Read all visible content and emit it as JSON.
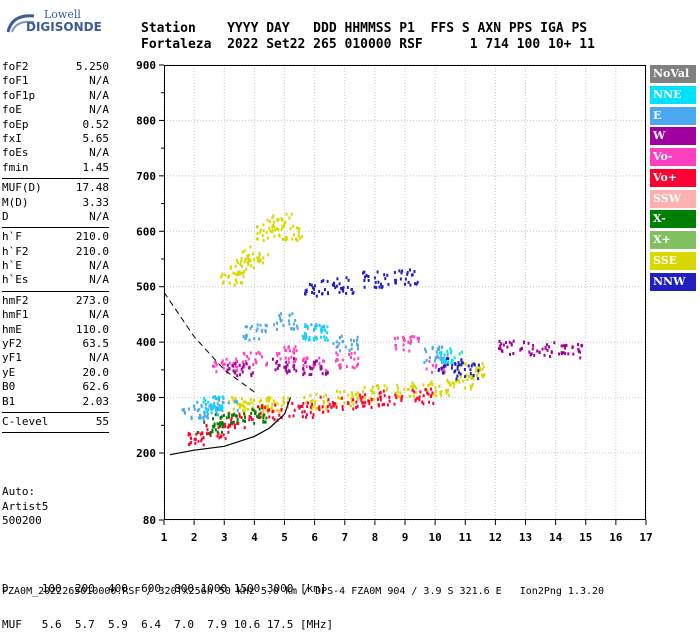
{
  "logo": {
    "line1": "Lowell",
    "line2": "DIGISONDE"
  },
  "header": {
    "line1": "Station    YYYY DAY   DDD HHMMSS P1  FFS S AXN PPS IGA PS",
    "line2": "Fortaleza  2022 Set22 265 010000 RSF      1 714 100 10+ 11"
  },
  "params": [
    {
      "label": "foF2",
      "value": "5.250"
    },
    {
      "label": "foF1",
      "value": "N/A"
    },
    {
      "label": "foF1p",
      "value": "N/A"
    },
    {
      "label": "foE",
      "value": "N/A"
    },
    {
      "label": "foEp",
      "value": "0.52"
    },
    {
      "label": "fxI",
      "value": "5.65"
    },
    {
      "label": "foEs",
      "value": "N/A"
    },
    {
      "label": "fmin",
      "value": "1.45"
    },
    {
      "sep": true
    },
    {
      "label": "MUF(D)",
      "value": "17.48"
    },
    {
      "label": "M(D)",
      "value": "3.33"
    },
    {
      "label": "D",
      "value": "N/A"
    },
    {
      "sep": true
    },
    {
      "label": "h`F",
      "value": "210.0"
    },
    {
      "label": "h`F2",
      "value": "210.0"
    },
    {
      "label": "h`E",
      "value": "N/A"
    },
    {
      "label": "h`Es",
      "value": "N/A"
    },
    {
      "sep": true
    },
    {
      "label": "hmF2",
      "value": "273.0"
    },
    {
      "label": "hmF1",
      "value": "N/A"
    },
    {
      "label": "hmE",
      "value": "110.0"
    },
    {
      "label": "yF2",
      "value": "63.5"
    },
    {
      "label": "yF1",
      "value": "N/A"
    },
    {
      "label": "yE",
      "value": "20.0"
    },
    {
      "label": "B0",
      "value": "62.6"
    },
    {
      "label": "B1",
      "value": "2.03"
    },
    {
      "sep": true
    },
    {
      "label": "C-level",
      "value": "55"
    },
    {
      "sep": true
    }
  ],
  "auto": {
    "line1": "Auto:",
    "line2": "Artist5",
    "line3": "500200"
  },
  "legend": [
    {
      "label": "NoVal",
      "color": "#808080"
    },
    {
      "label": "NNE",
      "color": "#00e0ff"
    },
    {
      "label": "E",
      "color": "#4aa8f0"
    },
    {
      "label": "W",
      "color": "#a000a0"
    },
    {
      "label": "Vo-",
      "color": "#ff40c0"
    },
    {
      "label": "Vo+",
      "color": "#ff0030"
    },
    {
      "label": "SSW",
      "color": "#ffb0b0"
    },
    {
      "label": "X-",
      "color": "#008000"
    },
    {
      "label": "X+",
      "color": "#80c060"
    },
    {
      "label": "SSE",
      "color": "#d8d800"
    },
    {
      "label": "NNW",
      "color": "#2020c0"
    }
  ],
  "chart_data": {
    "type": "scatter",
    "xlim": [
      1,
      17
    ],
    "ylim": [
      80,
      900
    ],
    "x_ticks": [
      "1",
      "2",
      "3",
      "4",
      "5",
      "6",
      "7",
      "8",
      "9",
      "10",
      "11",
      "12",
      "13",
      "14",
      "15",
      "16",
      "17"
    ],
    "y_ticks": [
      "80",
      "200",
      "300",
      "400",
      "500",
      "600",
      "700",
      "800",
      "900"
    ],
    "grid": true,
    "series": [
      {
        "name": "SSE",
        "color": "#d8d800",
        "points": [
          [
            3.2,
            520
          ],
          [
            3.6,
            540
          ],
          [
            4.0,
            560
          ],
          [
            4.4,
            600
          ],
          [
            4.8,
            620
          ],
          [
            5.2,
            600
          ],
          [
            3.5,
            290
          ],
          [
            4.0,
            285
          ],
          [
            4.8,
            290
          ],
          [
            6.0,
            295
          ],
          [
            7.0,
            300
          ],
          [
            8.0,
            310
          ],
          [
            9.0,
            315
          ],
          [
            10.0,
            320
          ],
          [
            10.8,
            330
          ],
          [
            11.2,
            350
          ]
        ]
      },
      {
        "name": "Vo+",
        "color": "#ff0030",
        "points": [
          [
            2.2,
            230
          ],
          [
            2.8,
            240
          ],
          [
            3.5,
            260
          ],
          [
            4.5,
            275
          ],
          [
            5.5,
            280
          ],
          [
            6.5,
            290
          ],
          [
            7.5,
            295
          ],
          [
            8.5,
            300
          ],
          [
            9.5,
            305
          ]
        ]
      },
      {
        "name": "Vo-",
        "color": "#ff40c0",
        "points": [
          [
            3.0,
            360
          ],
          [
            4.0,
            370
          ],
          [
            5.0,
            380
          ],
          [
            6.0,
            360
          ],
          [
            7.0,
            370
          ],
          [
            9.0,
            400
          ],
          [
            10.0,
            360
          ]
        ]
      },
      {
        "name": "E",
        "color": "#4aa8f0",
        "points": [
          [
            2.0,
            275
          ],
          [
            2.5,
            280
          ],
          [
            3.0,
            290
          ],
          [
            4.0,
            420
          ],
          [
            5.0,
            440
          ],
          [
            6.0,
            420
          ],
          [
            7.0,
            400
          ],
          [
            10.0,
            380
          ]
        ]
      },
      {
        "name": "W",
        "color": "#a000a0",
        "points": [
          [
            3.5,
            355
          ],
          [
            5.0,
            360
          ],
          [
            6.0,
            355
          ],
          [
            12.5,
            395
          ],
          [
            13.5,
            390
          ],
          [
            14.5,
            385
          ]
        ]
      },
      {
        "name": "NNW",
        "color": "#2020c0",
        "points": [
          [
            6.0,
            500
          ],
          [
            7.0,
            505
          ],
          [
            8.0,
            515
          ],
          [
            9.0,
            520
          ],
          [
            10.5,
            360
          ],
          [
            11.0,
            350
          ]
        ]
      },
      {
        "name": "NNE",
        "color": "#00e0ff",
        "points": [
          [
            2.5,
            290
          ],
          [
            6.0,
            420
          ],
          [
            10.5,
            380
          ]
        ]
      },
      {
        "name": "X-",
        "color": "#008000",
        "points": [
          [
            2.5,
            250
          ],
          [
            3.0,
            260
          ],
          [
            4.0,
            270
          ]
        ]
      }
    ],
    "profile": [
      [
        1.2,
        197
      ],
      [
        2.0,
        205
      ],
      [
        3.0,
        212
      ],
      [
        4.0,
        230
      ],
      [
        4.5,
        245
      ],
      [
        5.0,
        270
      ],
      [
        5.2,
        300
      ]
    ],
    "dashed": [
      [
        1.0,
        490
      ],
      [
        2.0,
        410
      ],
      [
        3.0,
        350
      ],
      [
        4.0,
        310
      ]
    ]
  },
  "table": {
    "line1": "D     100  200  400  600  800 1000 1500 3000 [km]",
    "line2": "MUF   5.6  5.7  5.9  6.4  7.0  7.9 10.6 17.5 [MHz]"
  },
  "footer": "FZA0M_2022265010000.RSF / 320fx256h 50 kHz 5.0 km / DPS-4 FZA0M 904 / 3.9 S 321.6 E   Ion2Png 1.3.20"
}
